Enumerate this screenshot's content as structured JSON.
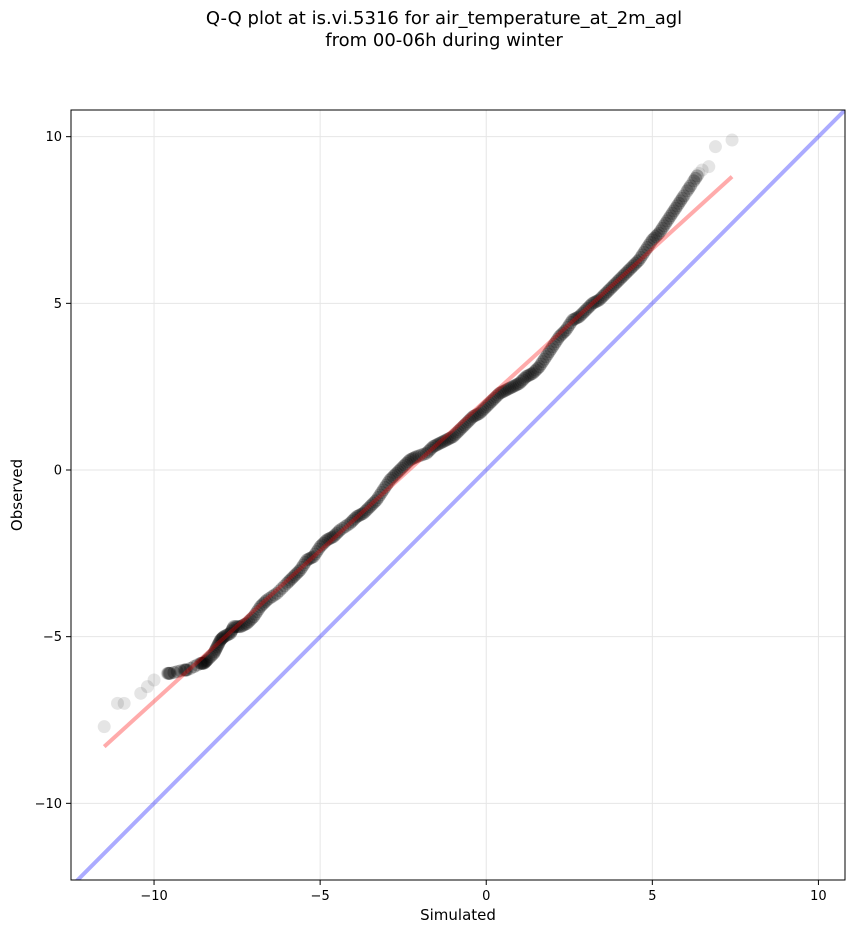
{
  "chart_data": {
    "type": "scatter",
    "title_line1": "Q-Q plot at is.vi.5316 for air_temperature_at_2m_agl",
    "title_line2": "from 00-06h during winter",
    "xlabel": "Simulated",
    "ylabel": "Observed",
    "xlim": [
      -12.5,
      10.8
    ],
    "ylim": [
      -12.3,
      10.8
    ],
    "xticks": [
      -10,
      -5,
      0,
      5,
      10
    ],
    "yticks": [
      -10,
      -5,
      0,
      5,
      10
    ],
    "grid": true,
    "colors": {
      "points": "#000000",
      "fit_line": "#ff0000",
      "identity_line": "#0000ff",
      "grid": "#e6e6e6"
    },
    "identity_line": [
      [
        -12.5,
        -12.5
      ],
      [
        10.8,
        10.8
      ]
    ],
    "fit_line": [
      [
        -11.5,
        -8.3
      ],
      [
        7.4,
        8.8
      ]
    ],
    "quantile_points": [
      [
        -11.5,
        -7.7
      ],
      [
        -11.1,
        -7.0
      ],
      [
        -10.9,
        -7.0
      ],
      [
        -10.4,
        -6.7
      ],
      [
        -10.2,
        -6.5
      ],
      [
        -10.0,
        -6.3
      ],
      [
        -9.6,
        -6.1
      ],
      [
        -9.5,
        -6.1
      ],
      [
        -9.1,
        -6.0
      ],
      [
        -9.0,
        -6.0
      ],
      [
        -8.6,
        -5.8
      ],
      [
        -8.5,
        -5.8
      ],
      [
        -8.4,
        -5.7
      ],
      [
        -8.2,
        -5.5
      ],
      [
        -8.1,
        -5.3
      ],
      [
        -8.0,
        -5.1
      ],
      [
        -7.9,
        -5.0
      ],
      [
        -7.7,
        -4.9
      ],
      [
        -7.6,
        -4.7
      ],
      [
        -7.4,
        -4.7
      ],
      [
        -7.2,
        -4.6
      ],
      [
        -7.0,
        -4.4
      ],
      [
        -6.8,
        -4.1
      ],
      [
        -6.6,
        -3.9
      ],
      [
        -6.3,
        -3.7
      ],
      [
        -6.0,
        -3.4
      ],
      [
        -5.8,
        -3.2
      ],
      [
        -5.6,
        -3.0
      ],
      [
        -5.4,
        -2.7
      ],
      [
        -5.2,
        -2.6
      ],
      [
        -5.0,
        -2.3
      ],
      [
        -4.8,
        -2.1
      ],
      [
        -4.6,
        -2.0
      ],
      [
        -4.4,
        -1.8
      ],
      [
        -4.1,
        -1.6
      ],
      [
        -3.9,
        -1.4
      ],
      [
        -3.7,
        -1.3
      ],
      [
        -3.5,
        -1.1
      ],
      [
        -3.3,
        -0.9
      ],
      [
        -3.1,
        -0.6
      ],
      [
        -2.9,
        -0.3
      ],
      [
        -2.7,
        -0.1
      ],
      [
        -2.5,
        0.1
      ],
      [
        -2.3,
        0.3
      ],
      [
        -2.1,
        0.4
      ],
      [
        -1.8,
        0.5
      ],
      [
        -1.6,
        0.7
      ],
      [
        -1.4,
        0.8
      ],
      [
        -1.2,
        0.9
      ],
      [
        -1.0,
        1.0
      ],
      [
        -0.8,
        1.2
      ],
      [
        -0.6,
        1.4
      ],
      [
        -0.4,
        1.6
      ],
      [
        -0.2,
        1.7
      ],
      [
        0.0,
        1.9
      ],
      [
        0.2,
        2.1
      ],
      [
        0.4,
        2.3
      ],
      [
        0.6,
        2.4
      ],
      [
        0.8,
        2.5
      ],
      [
        1.0,
        2.6
      ],
      [
        1.2,
        2.8
      ],
      [
        1.4,
        2.9
      ],
      [
        1.6,
        3.1
      ],
      [
        1.8,
        3.4
      ],
      [
        2.0,
        3.7
      ],
      [
        2.2,
        4.0
      ],
      [
        2.4,
        4.2
      ],
      [
        2.6,
        4.5
      ],
      [
        2.8,
        4.6
      ],
      [
        3.0,
        4.8
      ],
      [
        3.2,
        5.0
      ],
      [
        3.4,
        5.1
      ],
      [
        3.6,
        5.3
      ],
      [
        3.8,
        5.5
      ],
      [
        4.0,
        5.7
      ],
      [
        4.2,
        5.9
      ],
      [
        4.4,
        6.1
      ],
      [
        4.6,
        6.3
      ],
      [
        4.8,
        6.6
      ],
      [
        5.0,
        6.9
      ],
      [
        5.2,
        7.1
      ],
      [
        5.4,
        7.4
      ],
      [
        5.6,
        7.7
      ],
      [
        5.8,
        8.0
      ],
      [
        6.0,
        8.3
      ],
      [
        6.2,
        8.6
      ],
      [
        6.4,
        8.9
      ],
      [
        6.5,
        9.0
      ],
      [
        6.7,
        9.1
      ],
      [
        6.9,
        9.7
      ],
      [
        7.4,
        9.9
      ]
    ]
  }
}
